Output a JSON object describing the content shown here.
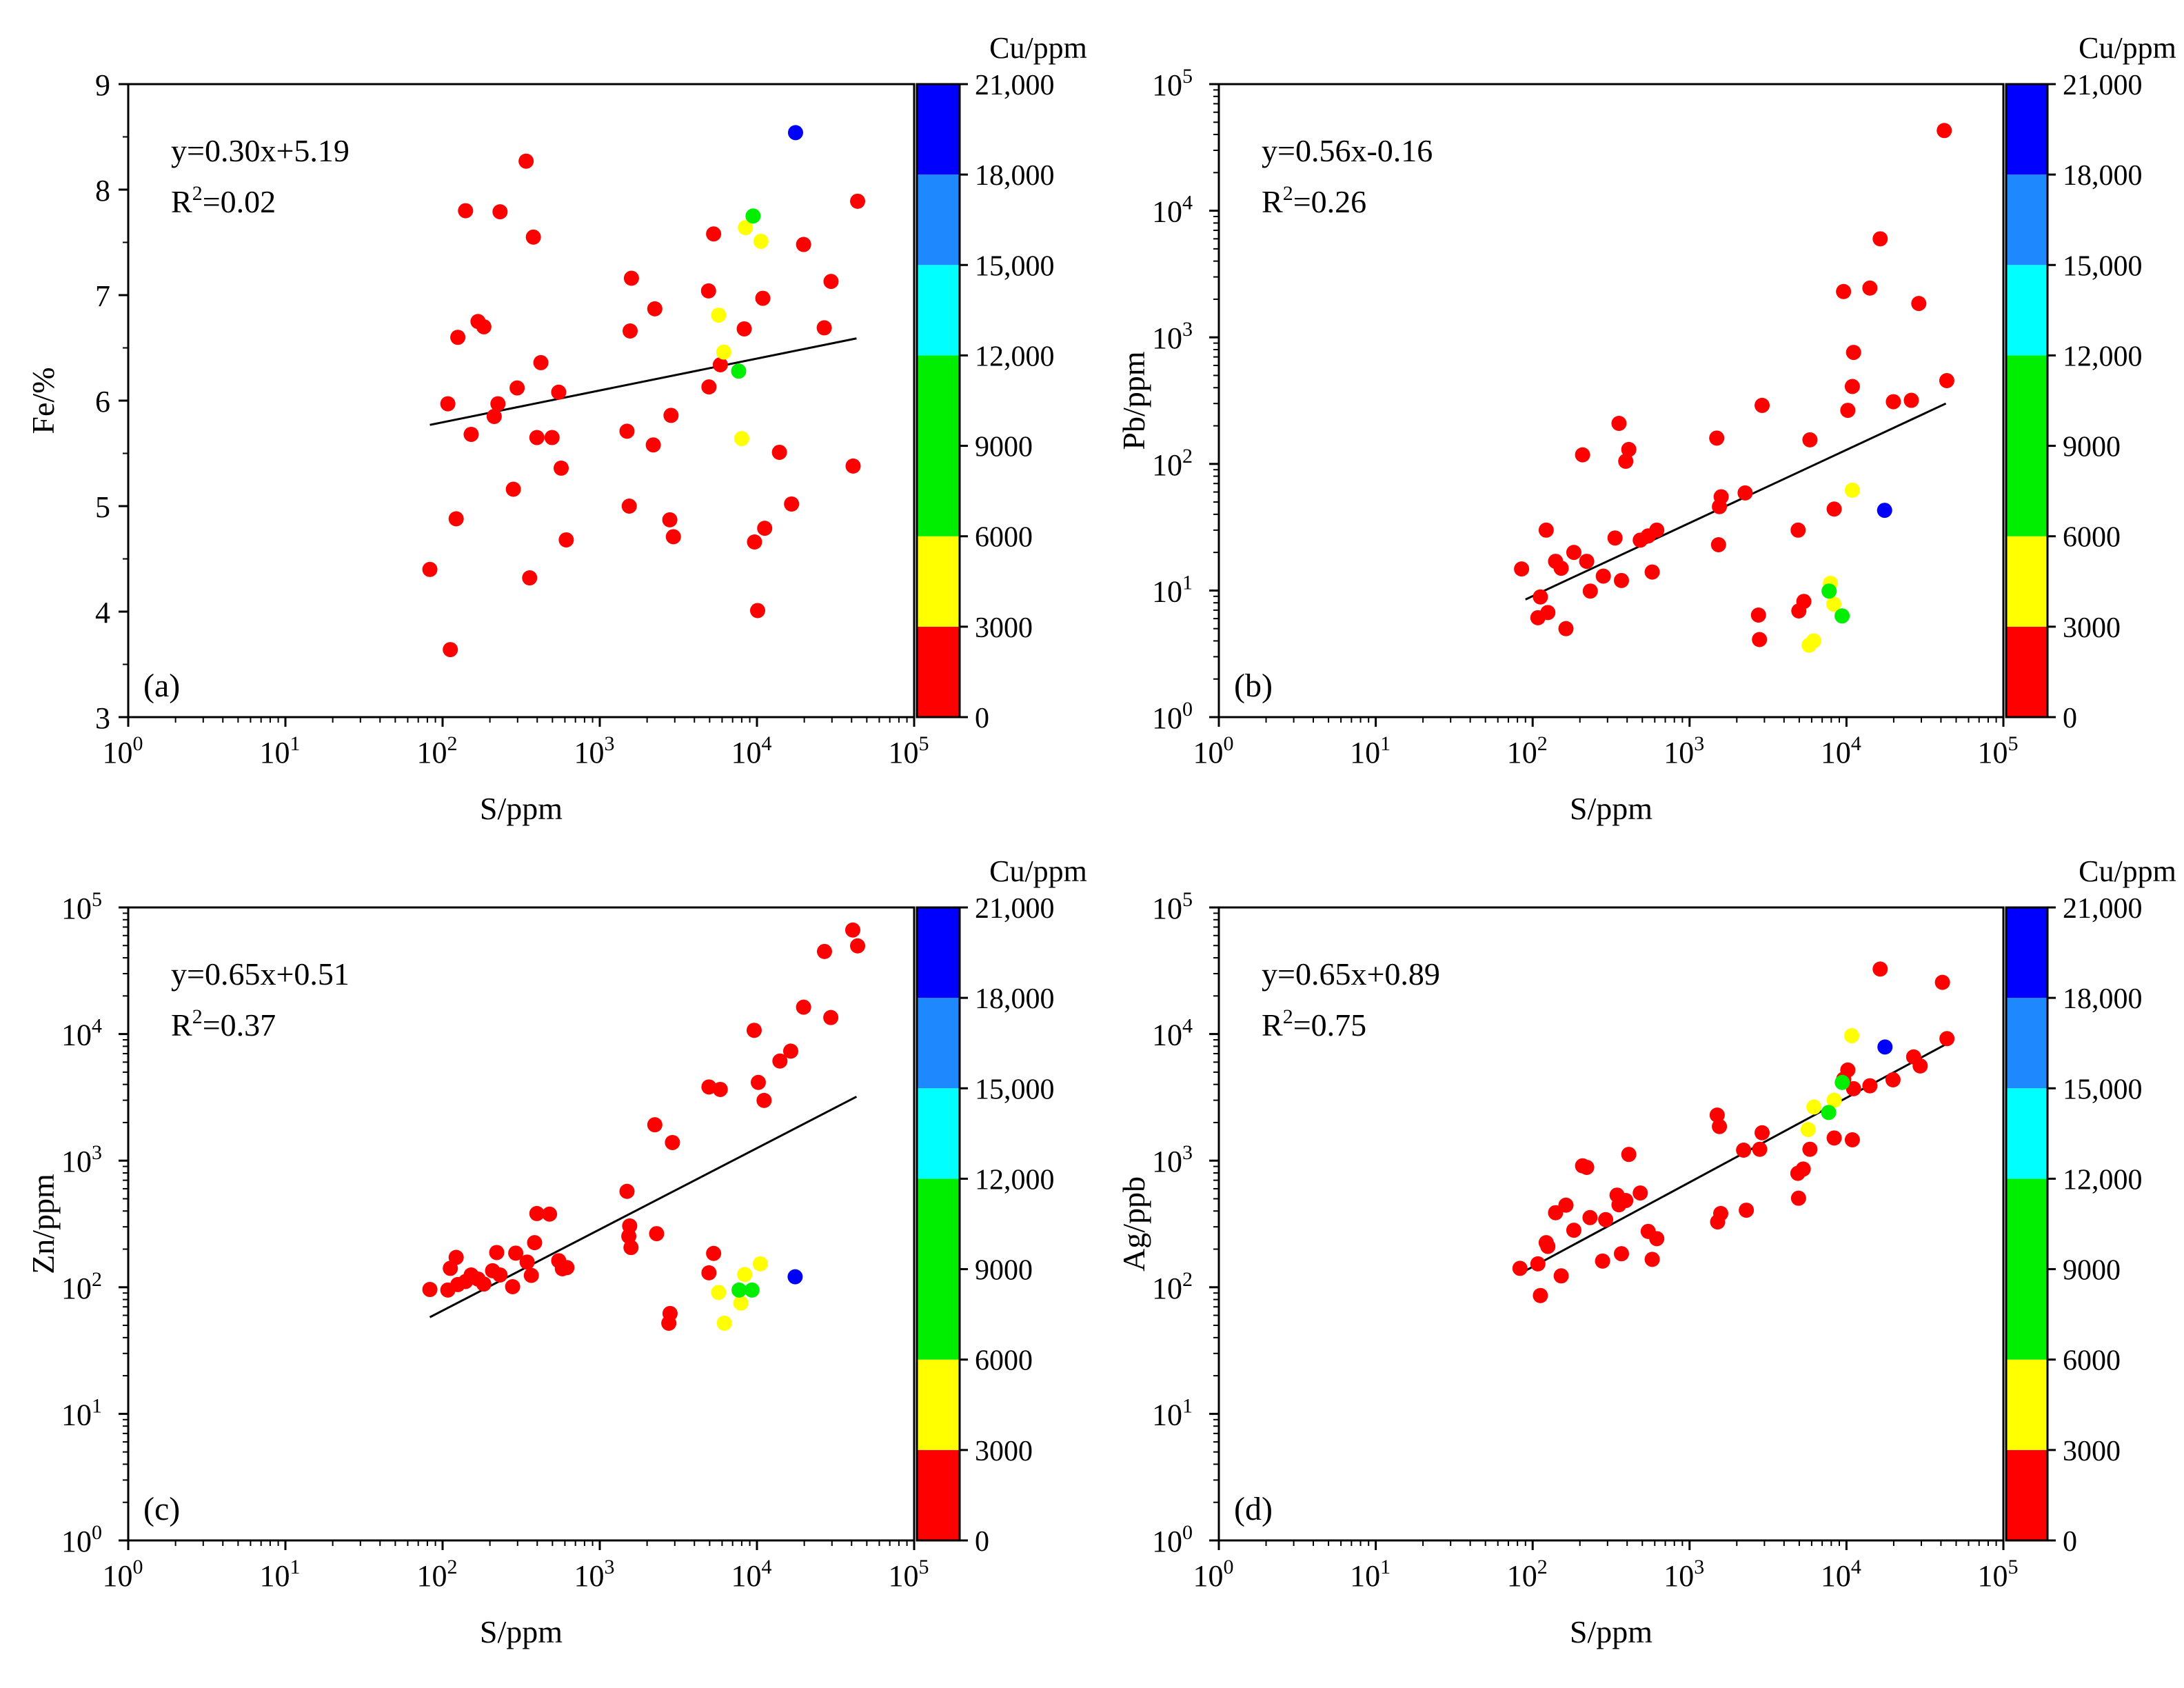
{
  "figure": {
    "colorbar": {
      "title": "Cu/ppm",
      "ticks": [
        0,
        3000,
        6000,
        9000,
        12000,
        15000,
        18000,
        21000
      ],
      "tick_labels": [
        "0",
        "3000",
        "6000",
        "9000",
        "12,000",
        "15,000",
        "18,000",
        "21,000"
      ],
      "bands": [
        {
          "from": 0,
          "to": 3000,
          "color": "#ff0000"
        },
        {
          "from": 3000,
          "to": 6000,
          "color": "#ffff00"
        },
        {
          "from": 6000,
          "to": 12000,
          "color": "#00ee00"
        },
        {
          "from": 12000,
          "to": 15000,
          "color": "#00ffff"
        },
        {
          "from": 15000,
          "to": 18000,
          "color": "#1e88ff"
        },
        {
          "from": 18000,
          "to": 21000,
          "color": "#0000ff"
        }
      ]
    }
  },
  "chart_data": [
    {
      "id": "a",
      "type": "scatter",
      "panel_label": "(a)",
      "xlabel": "S/ppm",
      "ylabel": "Fe/%",
      "x_scale": "log",
      "xlim": [
        1,
        100000
      ],
      "y_scale": "linear",
      "ylim": [
        3,
        9
      ],
      "y_ticks": [
        3,
        4,
        5,
        6,
        7,
        8,
        9
      ],
      "equation": "y=0.30x+5.19",
      "r2_label": "R",
      "r2_value": "=0.02",
      "fit": {
        "x": [
          83,
          43000
        ],
        "y": [
          5.77,
          6.59
        ]
      },
      "points": [
        [
          83,
          4.4,
          1000
        ],
        [
          108,
          5.97,
          1000
        ],
        [
          112,
          3.64,
          1000
        ],
        [
          122,
          4.88,
          1000
        ],
        [
          125,
          6.6,
          1000
        ],
        [
          140,
          7.8,
          1000
        ],
        [
          152,
          5.68,
          1000
        ],
        [
          168,
          6.75,
          1000
        ],
        [
          183,
          6.7,
          1000
        ],
        [
          213,
          5.85,
          1000
        ],
        [
          225,
          5.97,
          1000
        ],
        [
          232,
          7.79,
          1000
        ],
        [
          282,
          5.16,
          1000
        ],
        [
          298,
          6.12,
          1000
        ],
        [
          340,
          8.27,
          1000
        ],
        [
          358,
          4.32,
          1000
        ],
        [
          378,
          7.55,
          1000
        ],
        [
          398,
          5.65,
          1000
        ],
        [
          422,
          6.36,
          1000
        ],
        [
          497,
          5.65,
          1000
        ],
        [
          548,
          6.08,
          1000
        ],
        [
          568,
          5.36,
          1000
        ],
        [
          612,
          4.68,
          1000
        ],
        [
          1490,
          5.71,
          1000
        ],
        [
          1540,
          5.0,
          1000
        ],
        [
          1590,
          7.16,
          1000
        ],
        [
          1560,
          6.66,
          1000
        ],
        [
          2240,
          6.87,
          1000
        ],
        [
          2190,
          5.58,
          1000
        ],
        [
          2840,
          5.86,
          1000
        ],
        [
          2790,
          4.87,
          1000
        ],
        [
          2940,
          4.71,
          1000
        ],
        [
          4920,
          7.04,
          1000
        ],
        [
          4950,
          6.13,
          1000
        ],
        [
          5300,
          7.58,
          1000
        ],
        [
          5850,
          6.34,
          1000
        ],
        [
          8300,
          6.68,
          1000
        ],
        [
          9650,
          4.66,
          1000
        ],
        [
          10100,
          4.01,
          1000
        ],
        [
          10900,
          6.97,
          1000
        ],
        [
          11200,
          4.79,
          1000
        ],
        [
          13900,
          5.51,
          1000
        ],
        [
          16600,
          5.02,
          1000
        ],
        [
          19800,
          7.48,
          1000
        ],
        [
          26800,
          6.69,
          1000
        ],
        [
          29600,
          7.13,
          1000
        ],
        [
          40900,
          5.38,
          1000
        ],
        [
          43700,
          7.89,
          1000
        ],
        [
          5700,
          6.81,
          4000
        ],
        [
          6150,
          6.46,
          4000
        ],
        [
          8000,
          5.64,
          4000
        ],
        [
          8450,
          7.64,
          4000
        ],
        [
          10600,
          7.51,
          4000
        ],
        [
          7650,
          6.28,
          9000
        ],
        [
          9450,
          7.75,
          9000
        ],
        [
          17600,
          8.54,
          20000
        ]
      ]
    },
    {
      "id": "b",
      "type": "scatter",
      "panel_label": "(b)",
      "xlabel": "S/ppm",
      "ylabel": "Pb/ppm",
      "x_scale": "log",
      "xlim": [
        1,
        100000
      ],
      "y_scale": "log",
      "ylim": [
        1,
        100000
      ],
      "equation": "y=0.56x-0.16",
      "r2_label": "R",
      "r2_value": "=0.26",
      "fit": {
        "x": [
          90,
          43000
        ],
        "y": [
          8.5,
          300
        ]
      },
      "points": [
        [
          85,
          14.8,
          1000
        ],
        [
          108,
          6.1,
          1000
        ],
        [
          112,
          8.9,
          1000
        ],
        [
          122,
          30,
          1000
        ],
        [
          125,
          6.7,
          1000
        ],
        [
          140,
          17,
          1000
        ],
        [
          152,
          15,
          1000
        ],
        [
          163,
          5,
          1000
        ],
        [
          183,
          20,
          1000
        ],
        [
          208,
          118,
          1000
        ],
        [
          221,
          17,
          1000
        ],
        [
          233,
          9.9,
          1000
        ],
        [
          282,
          13,
          1000
        ],
        [
          335,
          26,
          1000
        ],
        [
          355,
          209,
          1000
        ],
        [
          368,
          12,
          1000
        ],
        [
          392,
          105,
          1000
        ],
        [
          410,
          130,
          1000
        ],
        [
          485,
          25,
          1000
        ],
        [
          545,
          27,
          1000
        ],
        [
          578,
          14,
          1000
        ],
        [
          618,
          30,
          1000
        ],
        [
          1490,
          160,
          1000
        ],
        [
          1550,
          46,
          1000
        ],
        [
          1530,
          23,
          1000
        ],
        [
          1590,
          55,
          1000
        ],
        [
          2260,
          59,
          1000
        ],
        [
          2750,
          6.4,
          1000
        ],
        [
          2790,
          4.1,
          1000
        ],
        [
          2900,
          290,
          1000
        ],
        [
          4920,
          30,
          1000
        ],
        [
          4970,
          6.9,
          1000
        ],
        [
          5350,
          8.2,
          1000
        ],
        [
          5850,
          155,
          1000
        ],
        [
          8350,
          44,
          1000
        ],
        [
          9580,
          2300,
          1000
        ],
        [
          10200,
          265,
          1000
        ],
        [
          10900,
          409,
          1000
        ],
        [
          11100,
          760,
          1000
        ],
        [
          14100,
          2450,
          1000
        ],
        [
          16400,
          6000,
          1000
        ],
        [
          19900,
          310,
          1000
        ],
        [
          25900,
          318,
          1000
        ],
        [
          28900,
          1850,
          1000
        ],
        [
          42000,
          43000,
          1000
        ],
        [
          43600,
          455,
          1000
        ],
        [
          5780,
          3.7,
          4000
        ],
        [
          6180,
          4.0,
          4000
        ],
        [
          7900,
          11.4,
          4000
        ],
        [
          8300,
          7.8,
          4000
        ],
        [
          10900,
          62,
          4000
        ],
        [
          7750,
          9.9,
          9000
        ],
        [
          9380,
          6.3,
          9000
        ],
        [
          17500,
          43,
          20000
        ]
      ]
    },
    {
      "id": "c",
      "type": "scatter",
      "panel_label": "(c)",
      "xlabel": "S/ppm",
      "ylabel": "Zn/ppm",
      "x_scale": "log",
      "xlim": [
        1,
        100000
      ],
      "y_scale": "log",
      "ylim": [
        1,
        100000
      ],
      "equation": "y=0.65x+0.51",
      "r2_label": "R",
      "r2_value": "=0.37",
      "fit": {
        "x": [
          83,
          43000
        ],
        "y": [
          58,
          3200
        ]
      },
      "points": [
        [
          83,
          96,
          1000
        ],
        [
          108,
          95,
          1000
        ],
        [
          112,
          141,
          1000
        ],
        [
          122,
          172,
          1000
        ],
        [
          125,
          105,
          1000
        ],
        [
          140,
          111,
          1000
        ],
        [
          152,
          125,
          1000
        ],
        [
          168,
          116,
          1000
        ],
        [
          183,
          106,
          1000
        ],
        [
          208,
          135,
          1000
        ],
        [
          221,
          188,
          1000
        ],
        [
          232,
          125,
          1000
        ],
        [
          279,
          101,
          1000
        ],
        [
          292,
          186,
          1000
        ],
        [
          345,
          158,
          1000
        ],
        [
          367,
          124,
          1000
        ],
        [
          385,
          225,
          1000
        ],
        [
          398,
          382,
          1000
        ],
        [
          479,
          378,
          1000
        ],
        [
          548,
          162,
          1000
        ],
        [
          578,
          140,
          1000
        ],
        [
          618,
          143,
          1000
        ],
        [
          1490,
          572,
          1000
        ],
        [
          1550,
          305,
          1000
        ],
        [
          1530,
          253,
          1000
        ],
        [
          1580,
          206,
          1000
        ],
        [
          2240,
          1920,
          1000
        ],
        [
          2300,
          265,
          1000
        ],
        [
          2800,
          62,
          1000
        ],
        [
          2750,
          52,
          1000
        ],
        [
          2900,
          1390,
          1000
        ],
        [
          4950,
          130,
          1000
        ],
        [
          4950,
          3820,
          1000
        ],
        [
          5300,
          185,
          1000
        ],
        [
          5840,
          3650,
          1000
        ],
        [
          9600,
          10700,
          1000
        ],
        [
          10200,
          4150,
          1000
        ],
        [
          11100,
          2990,
          1000
        ],
        [
          14000,
          6120,
          1000
        ],
        [
          16400,
          7330,
          1000
        ],
        [
          19800,
          16300,
          1000
        ],
        [
          26900,
          44900,
          1000
        ],
        [
          29500,
          13500,
          1000
        ],
        [
          40700,
          66300,
          1000
        ],
        [
          43700,
          49700,
          1000
        ],
        [
          5700,
          91,
          4000
        ],
        [
          6200,
          52,
          4000
        ],
        [
          7900,
          75,
          4000
        ],
        [
          8350,
          126,
          4000
        ],
        [
          10500,
          153,
          4000
        ],
        [
          7700,
          95,
          9000
        ],
        [
          9300,
          95,
          9000
        ],
        [
          17500,
          121,
          20000
        ]
      ]
    },
    {
      "id": "d",
      "type": "scatter",
      "panel_label": "(d)",
      "xlabel": "S/ppm",
      "ylabel": "Ag/ppb",
      "x_scale": "log",
      "xlim": [
        1,
        100000
      ],
      "y_scale": "log",
      "ylim": [
        1,
        100000
      ],
      "equation": "y=0.65x+0.89",
      "r2_label": "R",
      "r2_value": "=0.75",
      "fit": {
        "x": [
          83,
          43000
        ],
        "y": [
          128,
          8300
        ]
      },
      "points": [
        [
          83,
          141,
          1000
        ],
        [
          108,
          153,
          1000
        ],
        [
          112,
          86,
          1000
        ],
        [
          122,
          225,
          1000
        ],
        [
          125,
          210,
          1000
        ],
        [
          140,
          388,
          1000
        ],
        [
          152,
          123,
          1000
        ],
        [
          163,
          445,
          1000
        ],
        [
          183,
          282,
          1000
        ],
        [
          208,
          910,
          1000
        ],
        [
          221,
          885,
          1000
        ],
        [
          232,
          355,
          1000
        ],
        [
          279,
          161,
          1000
        ],
        [
          292,
          342,
          1000
        ],
        [
          345,
          534,
          1000
        ],
        [
          355,
          448,
          1000
        ],
        [
          368,
          184,
          1000
        ],
        [
          392,
          484,
          1000
        ],
        [
          410,
          1120,
          1000
        ],
        [
          485,
          555,
          1000
        ],
        [
          545,
          276,
          1000
        ],
        [
          578,
          166,
          1000
        ],
        [
          618,
          242,
          1000
        ],
        [
          1500,
          2290,
          1000
        ],
        [
          1550,
          1860,
          1000
        ],
        [
          1510,
          328,
          1000
        ],
        [
          1580,
          382,
          1000
        ],
        [
          2210,
          1210,
          1000
        ],
        [
          2300,
          406,
          1000
        ],
        [
          2800,
          1230,
          1000
        ],
        [
          2900,
          1660,
          1000
        ],
        [
          4900,
          794,
          1000
        ],
        [
          4950,
          505,
          1000
        ],
        [
          5300,
          858,
          1000
        ],
        [
          5850,
          1230,
          1000
        ],
        [
          8350,
          1510,
          1000
        ],
        [
          9600,
          4400,
          1000
        ],
        [
          10200,
          5200,
          1000
        ],
        [
          10900,
          1460,
          1000
        ],
        [
          11100,
          3700,
          1000
        ],
        [
          14100,
          3900,
          1000
        ],
        [
          16400,
          32600,
          1000
        ],
        [
          19800,
          4350,
          1000
        ],
        [
          26800,
          6600,
          1000
        ],
        [
          29500,
          5600,
          1000
        ],
        [
          40900,
          25600,
          1000
        ],
        [
          43700,
          9200,
          1000
        ],
        [
          5700,
          1760,
          4000
        ],
        [
          6200,
          2650,
          4000
        ],
        [
          8350,
          3000,
          4000
        ],
        [
          10800,
          9700,
          4000
        ],
        [
          7700,
          2400,
          9000
        ],
        [
          9400,
          4150,
          9000
        ],
        [
          17600,
          7900,
          20000
        ]
      ]
    }
  ]
}
